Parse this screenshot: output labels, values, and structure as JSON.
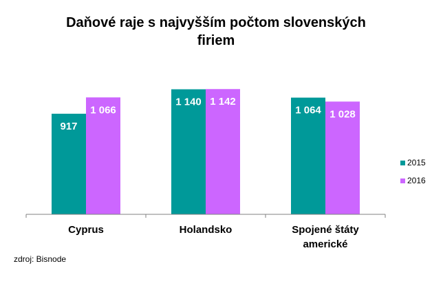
{
  "chart_data": {
    "type": "bar",
    "title": "Daňové raje s najvyšším počtom slovenských firiem",
    "categories": [
      "Cyprus",
      "Holandsko",
      "Spojené štáty americké"
    ],
    "category_lines": [
      [
        "Cyprus"
      ],
      [
        "Holandsko"
      ],
      [
        "Spojené štáty",
        "americké"
      ]
    ],
    "series": [
      {
        "name": "2015",
        "color": "#009999",
        "values": [
          917,
          1140,
          1064
        ],
        "labels": [
          "917",
          "1 140",
          "1 064"
        ]
      },
      {
        "name": "2016",
        "color": "#cc66ff",
        "values": [
          1066,
          1142,
          1028
        ],
        "labels": [
          "1 066",
          "1 142",
          "1 028"
        ]
      }
    ],
    "ylim": [
      0,
      1200
    ],
    "grid": false,
    "legend": "right"
  },
  "source": "zdroj: Bisnode"
}
